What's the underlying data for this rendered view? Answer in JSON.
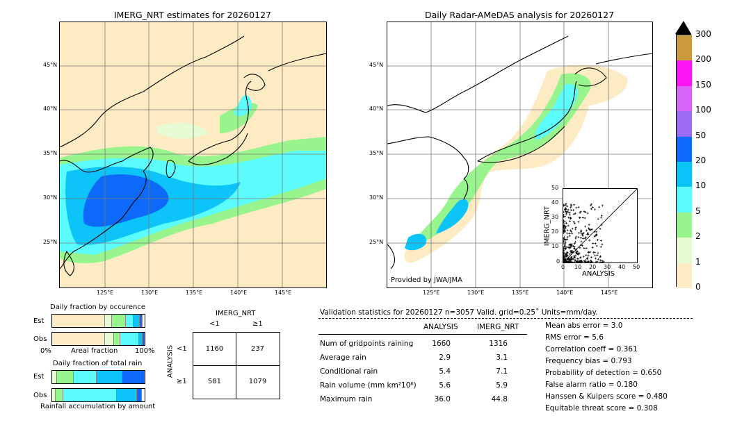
{
  "left_map": {
    "title": "IMERG_NRT estimates for 20260127",
    "lat_labels": [
      "45°N",
      "40°N",
      "35°N",
      "30°N",
      "25°N"
    ],
    "lon_labels": [
      "125°E",
      "130°E",
      "135°E",
      "140°E",
      "145°E"
    ]
  },
  "right_map": {
    "title": "Daily Radar-AMeDAS analysis for 20260127",
    "lat_labels": [
      "45°N",
      "40°N",
      "35°N",
      "30°N",
      "25°N"
    ],
    "lon_labels": [
      "125°E",
      "130°E",
      "135°E",
      "140°E",
      "145°E"
    ],
    "credit": "Provided by JWA/JMA"
  },
  "colorbar": {
    "ticks": [
      "0",
      "1",
      "2",
      "5",
      "10",
      "20",
      "50",
      "100",
      "150",
      "200",
      "300"
    ],
    "colors": [
      "#fdebc4",
      "#e6fbd2",
      "#98f48c",
      "#5dfcfc",
      "#0cc4f8",
      "#0d6af9",
      "#9b6df5",
      "#d964f8",
      "#fc14f4",
      "#ca9a3c"
    ]
  },
  "scatter_inset": {
    "xlabel": "ANALYSIS",
    "ylabel": "IMERG_NRT",
    "ticks": [
      "0",
      "10",
      "20",
      "30",
      "40",
      "50"
    ]
  },
  "fraction_occurrence": {
    "title": "Daily fraction by occurence",
    "rows": [
      "Est",
      "Obs"
    ],
    "axis_left": "0%",
    "axis_mid": "Areal fraction",
    "axis_right": "100%"
  },
  "fraction_rain": {
    "title": "Daily fraction of total rain",
    "rows": [
      "Est",
      "Obs"
    ],
    "footer": "Rainfall accumulation by amount"
  },
  "contingency": {
    "col_header": "IMERG_NRT",
    "col_labels": [
      "<1",
      "≥1"
    ],
    "row_header": "ANALYSIS",
    "row_labels": [
      "<1",
      "≥1"
    ],
    "cells": [
      [
        "1160",
        "237"
      ],
      [
        "581",
        "1079"
      ]
    ]
  },
  "validation": {
    "header": "Validation statistics for 20260127  n=3057 Valid. grid=0.25˚ Units=mm/day.",
    "col_analysis": "ANALYSIS",
    "col_imerg": "IMERG_NRT",
    "rows": [
      {
        "label": "Num of gridpoints raining",
        "analysis": "1660",
        "imerg": "1316"
      },
      {
        "label": "Average rain",
        "analysis": "2.9",
        "imerg": "3.1"
      },
      {
        "label": "Conditional rain",
        "analysis": "5.4",
        "imerg": "7.1"
      },
      {
        "label": "Rain volume (mm km²10⁶)",
        "analysis": "5.6",
        "imerg": "5.9"
      },
      {
        "label": "Maximum rain",
        "analysis": "36.0",
        "imerg": "44.8"
      }
    ],
    "scores": [
      "Mean abs error =    3.0",
      "RMS error =    5.6",
      "Correlation coeff =  0.361",
      "Frequency bias =  0.793",
      "Probability of detection =  0.650",
      "False alarm ratio =  0.180",
      "Hanssen & Kuipers score =  0.480",
      "Equitable threat score =  0.308"
    ]
  },
  "chart_data": [
    {
      "type": "heatmap",
      "title": "IMERG_NRT estimates for 20260127",
      "x_range": [
        120,
        149
      ],
      "y_range": [
        20,
        50
      ],
      "units": "mm/day"
    },
    {
      "type": "heatmap",
      "title": "Daily Radar-AMeDAS analysis for 20260127",
      "x_range": [
        120,
        149
      ],
      "y_range": [
        20,
        50
      ],
      "units": "mm/day"
    },
    {
      "type": "scatter",
      "xlabel": "ANALYSIS",
      "ylabel": "IMERG_NRT",
      "xlim": [
        0,
        50
      ],
      "ylim": [
        0,
        50
      ]
    },
    {
      "type": "bar",
      "title": "Daily fraction by occurence",
      "categories": [
        "Est",
        "Obs"
      ],
      "series": [
        {
          "values": [
            0.57,
            0.57
          ]
        },
        {
          "values": [
            0.08,
            0.1
          ]
        },
        {
          "values": [
            0.15,
            0.07
          ]
        },
        {
          "values": [
            0.08,
            0.2
          ]
        },
        {
          "values": [
            0.07,
            0.04
          ]
        },
        {
          "values": [
            0.03,
            0.02
          ]
        }
      ]
    },
    {
      "type": "bar",
      "title": "Daily fraction of total rain",
      "categories": [
        "Est",
        "Obs"
      ],
      "series": [
        {
          "values": [
            0.05,
            0.04
          ]
        },
        {
          "values": [
            0.18,
            0.08
          ]
        },
        {
          "values": [
            0.25,
            0.58
          ]
        },
        {
          "values": [
            0.28,
            0.22
          ]
        },
        {
          "values": [
            0.24,
            0.05
          ]
        }
      ]
    },
    {
      "type": "table",
      "columns": [
        "<1",
        "≥1"
      ],
      "rows": [
        "<1",
        "≥1"
      ],
      "values": [
        [
          1160,
          237
        ],
        [
          581,
          1079
        ]
      ]
    }
  ]
}
